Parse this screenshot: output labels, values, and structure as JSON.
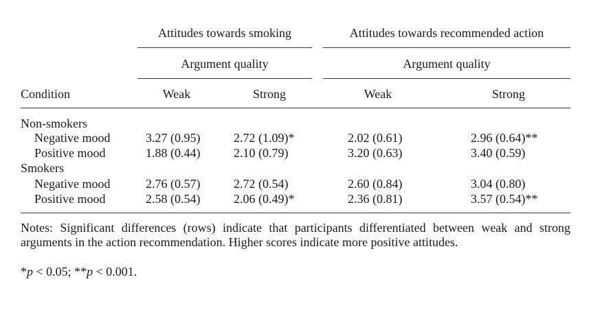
{
  "header": {
    "group1": "Attitudes towards smoking",
    "group2": "Attitudes towards recommended action",
    "subgroup1": "Argument quality",
    "subgroup2": "Argument quality",
    "condition": "Condition",
    "cols": [
      "Weak",
      "Strong",
      "Weak",
      "Strong"
    ]
  },
  "sections": [
    {
      "label": "Non-smokers",
      "rows": [
        {
          "label": "Negative mood",
          "values": [
            "3.27 (0.95)",
            "2.72 (1.09)*",
            "2.02 (0.61)",
            "2.96 (0.64)**"
          ]
        },
        {
          "label": "Positive mood",
          "values": [
            "1.88 (0.44)",
            "2.10 (0.79)",
            "3.20 (0.63)",
            "3.40 (0.59)"
          ]
        }
      ]
    },
    {
      "label": "Smokers",
      "rows": [
        {
          "label": "Negative mood",
          "values": [
            "2.76 (0.57)",
            "2.72 (0.54)",
            "2.60 (0.84)",
            "3.04 (0.80)"
          ]
        },
        {
          "label": "Positive mood",
          "values": [
            "2.58 (0.54)",
            "2.06 (0.49)*",
            "2.36 (0.81)",
            "3.57 (0.54)**"
          ]
        }
      ]
    }
  ],
  "notes": "Notes: Significant differences (rows) indicate that participants differentiated between weak and strong arguments in the action recommendation. Higher scores indicate more positive attitudes.",
  "footnote": {
    "star1": "*",
    "p1": "p",
    "lt1": " < 0.05; ",
    "star2": "**",
    "p2": "p",
    "lt2": " < 0.001."
  }
}
